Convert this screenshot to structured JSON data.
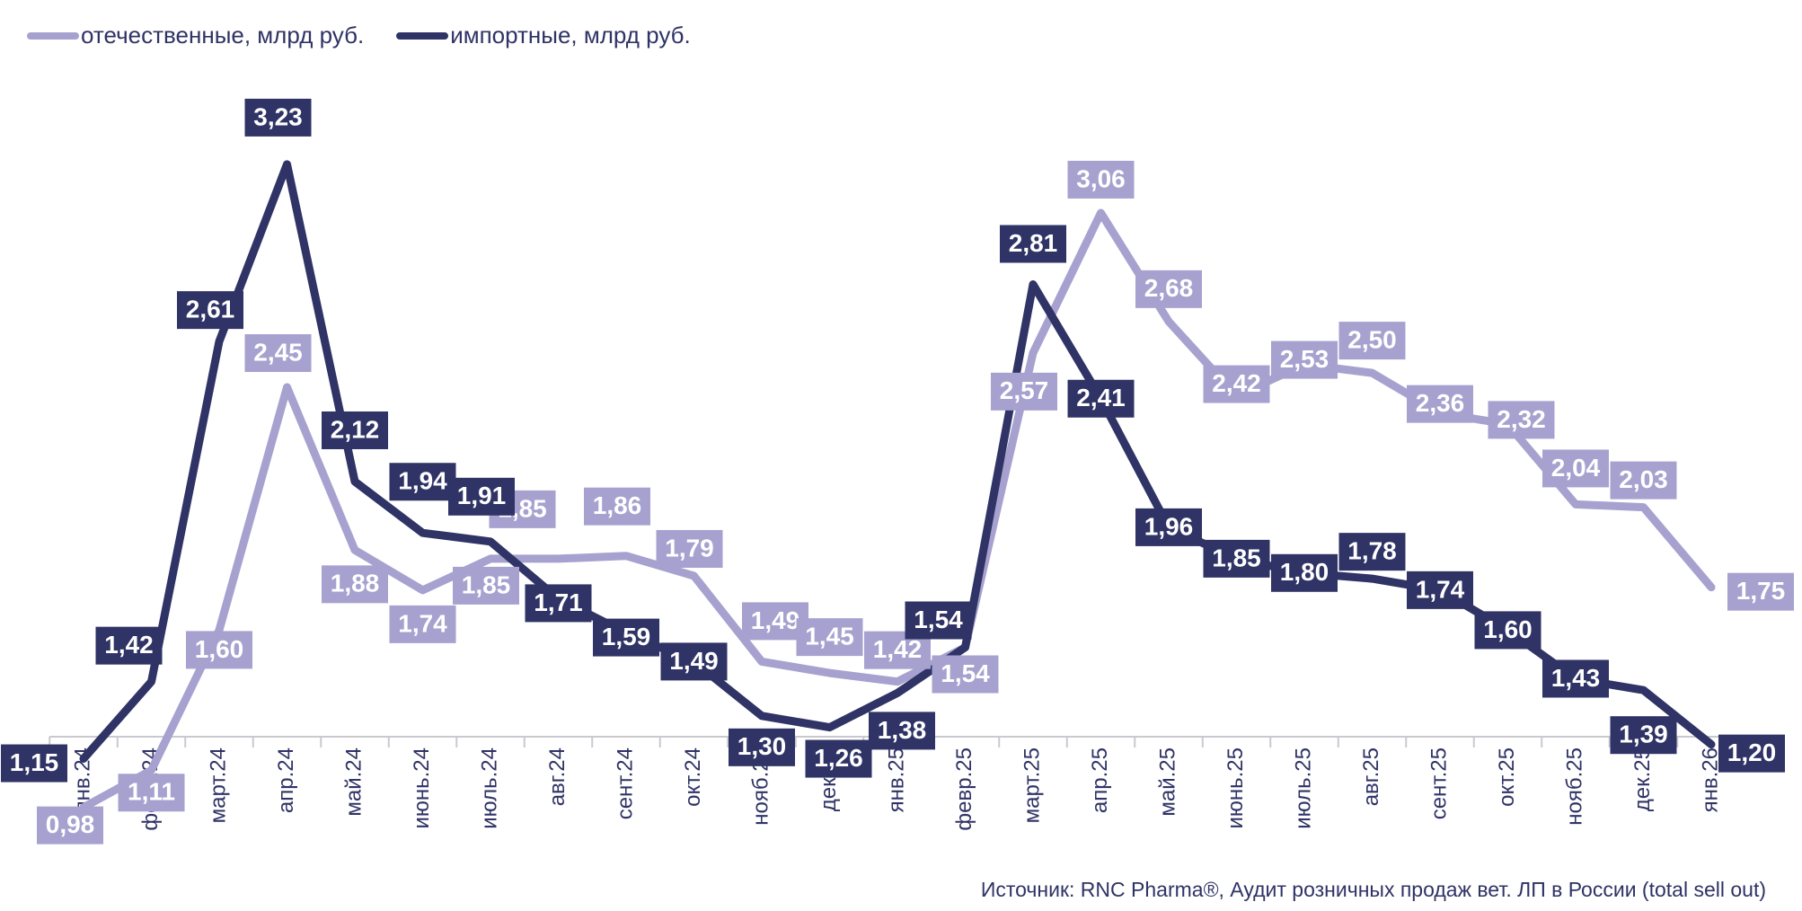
{
  "chart_data": {
    "type": "line",
    "categories": [
      "янв.24",
      "февр.24",
      "март.24",
      "апр.24",
      "май.24",
      "июнь.24",
      "июль.24",
      "авг.24",
      "сент.24",
      "окт.24",
      "нояб.24",
      "дек.24",
      "янв.25",
      "февр.25",
      "март.25",
      "апр.25",
      "май.25",
      "июнь.25",
      "июль.25",
      "авг.25",
      "сент.25",
      "окт.25",
      "нояб.25",
      "дек.25",
      "янв.26"
    ],
    "series": [
      {
        "name": "отечественные, млрд руб.",
        "color": "#a7a1cf",
        "values": [
          0.98,
          1.11,
          1.6,
          2.45,
          1.88,
          1.74,
          1.85,
          1.85,
          1.86,
          1.79,
          1.49,
          1.45,
          1.42,
          1.54,
          2.57,
          3.06,
          2.68,
          2.42,
          2.53,
          2.5,
          2.36,
          2.32,
          2.04,
          2.03,
          1.75
        ],
        "labels": [
          "0,98",
          "1,11",
          "1,60",
          "2,45",
          "1,88",
          "1,74",
          "1,85",
          "1,85",
          "1,86",
          "1,79",
          "1,49",
          "1,45",
          "1,42",
          "1,54",
          "2,57",
          "3,06",
          "2,68",
          "2,42",
          "2,53",
          "2,50",
          "2,36",
          "2,32",
          "2,04",
          "2,03",
          "1,75"
        ]
      },
      {
        "name": "импортные, млрд руб.",
        "color": "#2f3365",
        "values": [
          1.15,
          1.42,
          2.61,
          3.23,
          2.12,
          1.94,
          1.91,
          1.71,
          1.59,
          1.49,
          1.3,
          1.26,
          1.38,
          1.54,
          2.81,
          2.41,
          1.96,
          1.85,
          1.8,
          1.78,
          1.74,
          1.6,
          1.43,
          1.39,
          1.2
        ],
        "labels": [
          "1,15",
          "1,42",
          "2,61",
          "3,23",
          "2,12",
          "1,94",
          "1,91",
          "1,71",
          "1,59",
          "1,49",
          "1,30",
          "1,26",
          "1,38",
          "1,54",
          "2,81",
          "2,41",
          "1,96",
          "1,85",
          "1,80",
          "1,78",
          "1,74",
          "1,60",
          "1,43",
          "1,39",
          "1,20"
        ]
      }
    ],
    "grid": false,
    "legend_position": "top-left"
  },
  "source_text": "Источник: RNC Pharma®, Аудит розничных продаж вет. ЛП в России (total sell out)"
}
